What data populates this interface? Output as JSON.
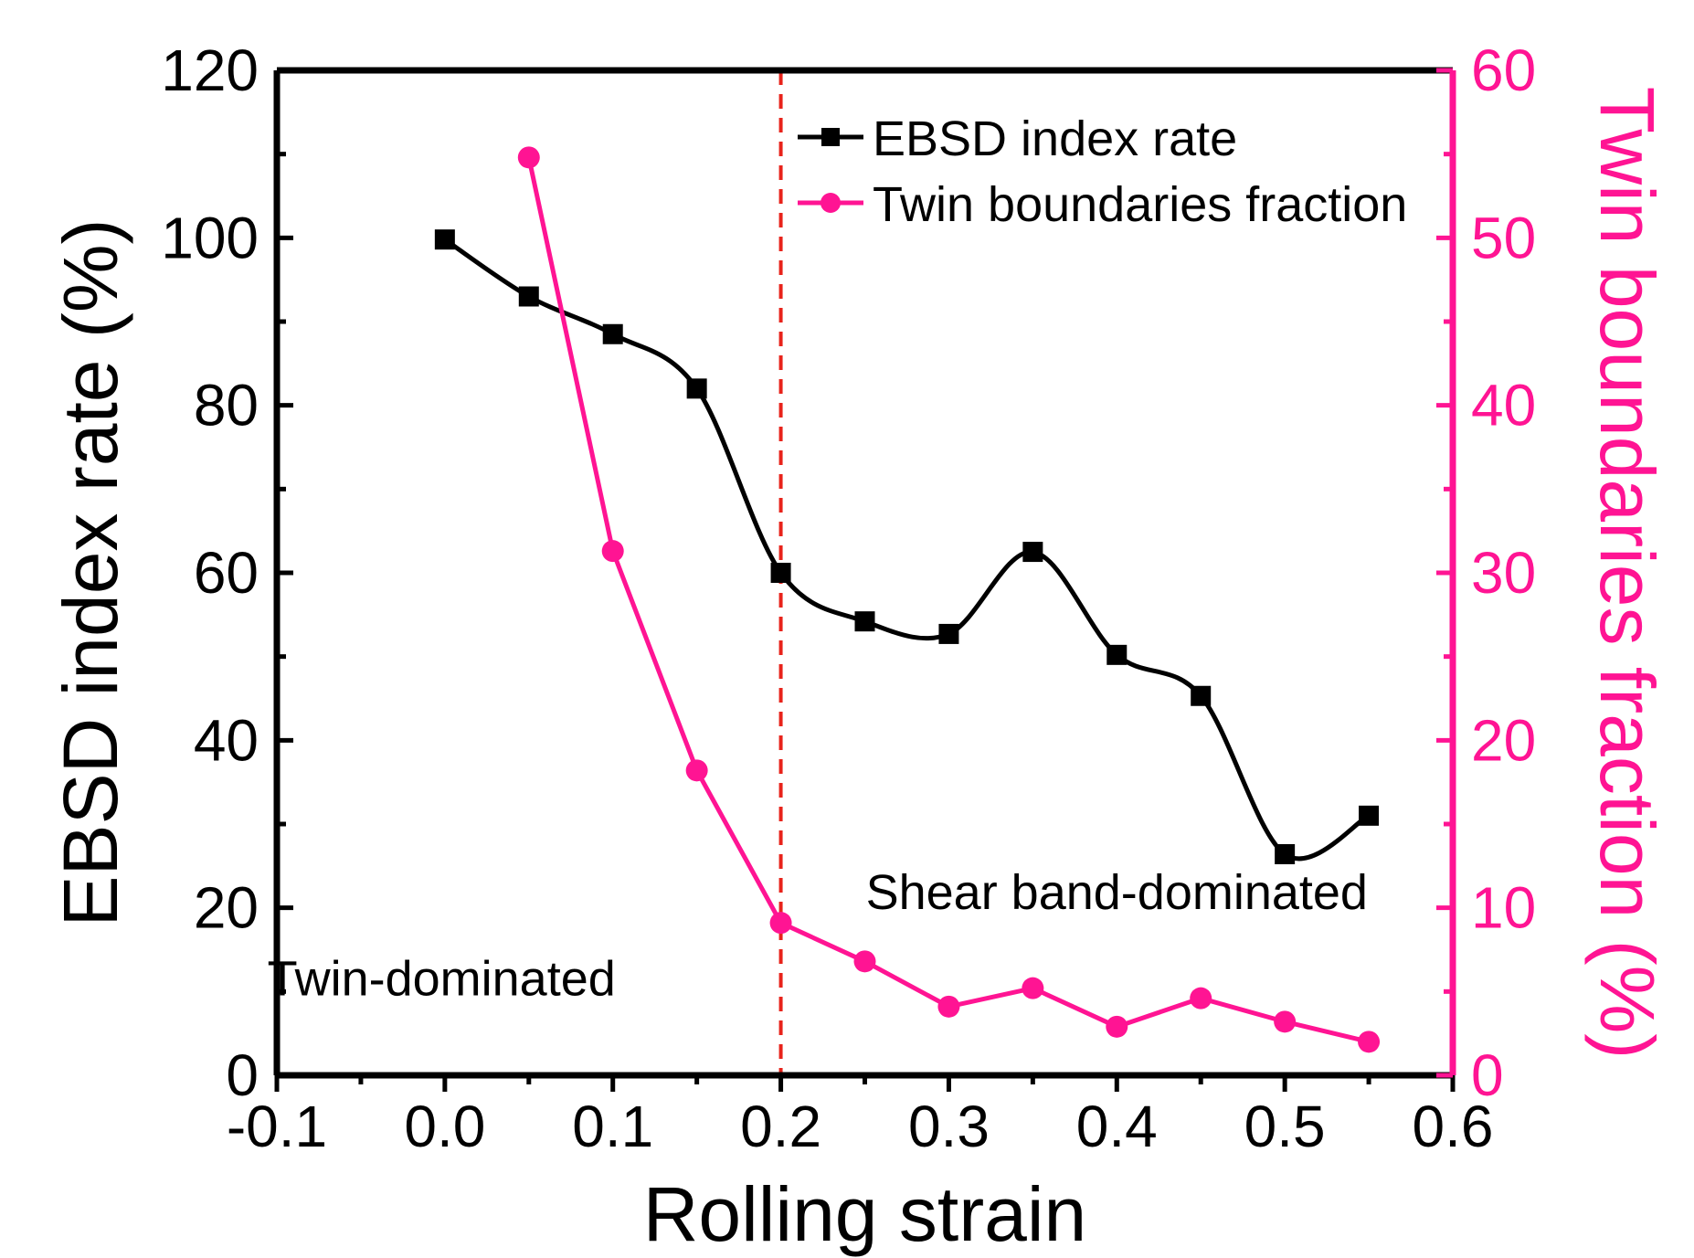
{
  "chart_data": {
    "type": "line",
    "x_axis": {
      "label": "Rolling strain",
      "range": [
        -0.1,
        0.6
      ],
      "ticks": [
        -0.1,
        0.0,
        0.1,
        0.2,
        0.3,
        0.4,
        0.5,
        0.6
      ],
      "tick_labels": [
        "-0.1",
        "0.0",
        "0.1",
        "0.2",
        "0.3",
        "0.4",
        "0.5",
        "0.6"
      ]
    },
    "y_axis_left": {
      "label": "EBSD index rate (%)",
      "range": [
        0,
        120
      ],
      "ticks": [
        0,
        20,
        40,
        60,
        80,
        100,
        120
      ],
      "tick_labels": [
        "0",
        "20",
        "40",
        "60",
        "80",
        "100",
        "120"
      ]
    },
    "y_axis_right": {
      "label": "Twin boundaries fraction (%)",
      "range": [
        0,
        60
      ],
      "ticks": [
        0,
        10,
        20,
        30,
        40,
        50,
        60
      ],
      "tick_labels": [
        "0",
        "10",
        "20",
        "30",
        "40",
        "50",
        "60"
      ],
      "color": "#ff1493"
    },
    "series": [
      {
        "name": "EBSD index rate",
        "axis": "left",
        "color": "#000000",
        "marker": "square",
        "smooth_line": true,
        "x": [
          0.0,
          0.05,
          0.1,
          0.15,
          0.2,
          0.25,
          0.3,
          0.35,
          0.4,
          0.45,
          0.5,
          0.55
        ],
        "values": [
          99.8,
          93.0,
          88.5,
          82.0,
          60.0,
          54.2,
          52.7,
          62.5,
          50.2,
          45.3,
          26.4,
          31.0
        ]
      },
      {
        "name": "Twin boundaries fraction",
        "axis": "right",
        "color": "#ff1493",
        "marker": "circle",
        "smooth_line": false,
        "x": [
          0.05,
          0.1,
          0.15,
          0.2,
          0.25,
          0.3,
          0.35,
          0.4,
          0.45,
          0.5,
          0.55
        ],
        "values": [
          54.8,
          31.3,
          18.2,
          9.1,
          6.8,
          4.1,
          5.2,
          2.9,
          4.6,
          3.2,
          2.0
        ]
      }
    ],
    "divider": {
      "x": 0.2,
      "color": "#e8231b",
      "style": "dashed"
    },
    "annotations": [
      {
        "text": "Twin-dominated",
        "x": -0.002,
        "y": 11.5,
        "axis": "left"
      },
      {
        "text": "Shear band-dominated",
        "x": 0.4,
        "y": 21.8,
        "axis": "left"
      }
    ],
    "legend": {
      "position": "top-right",
      "entries": [
        "EBSD index rate",
        "Twin boundaries fraction"
      ]
    }
  }
}
